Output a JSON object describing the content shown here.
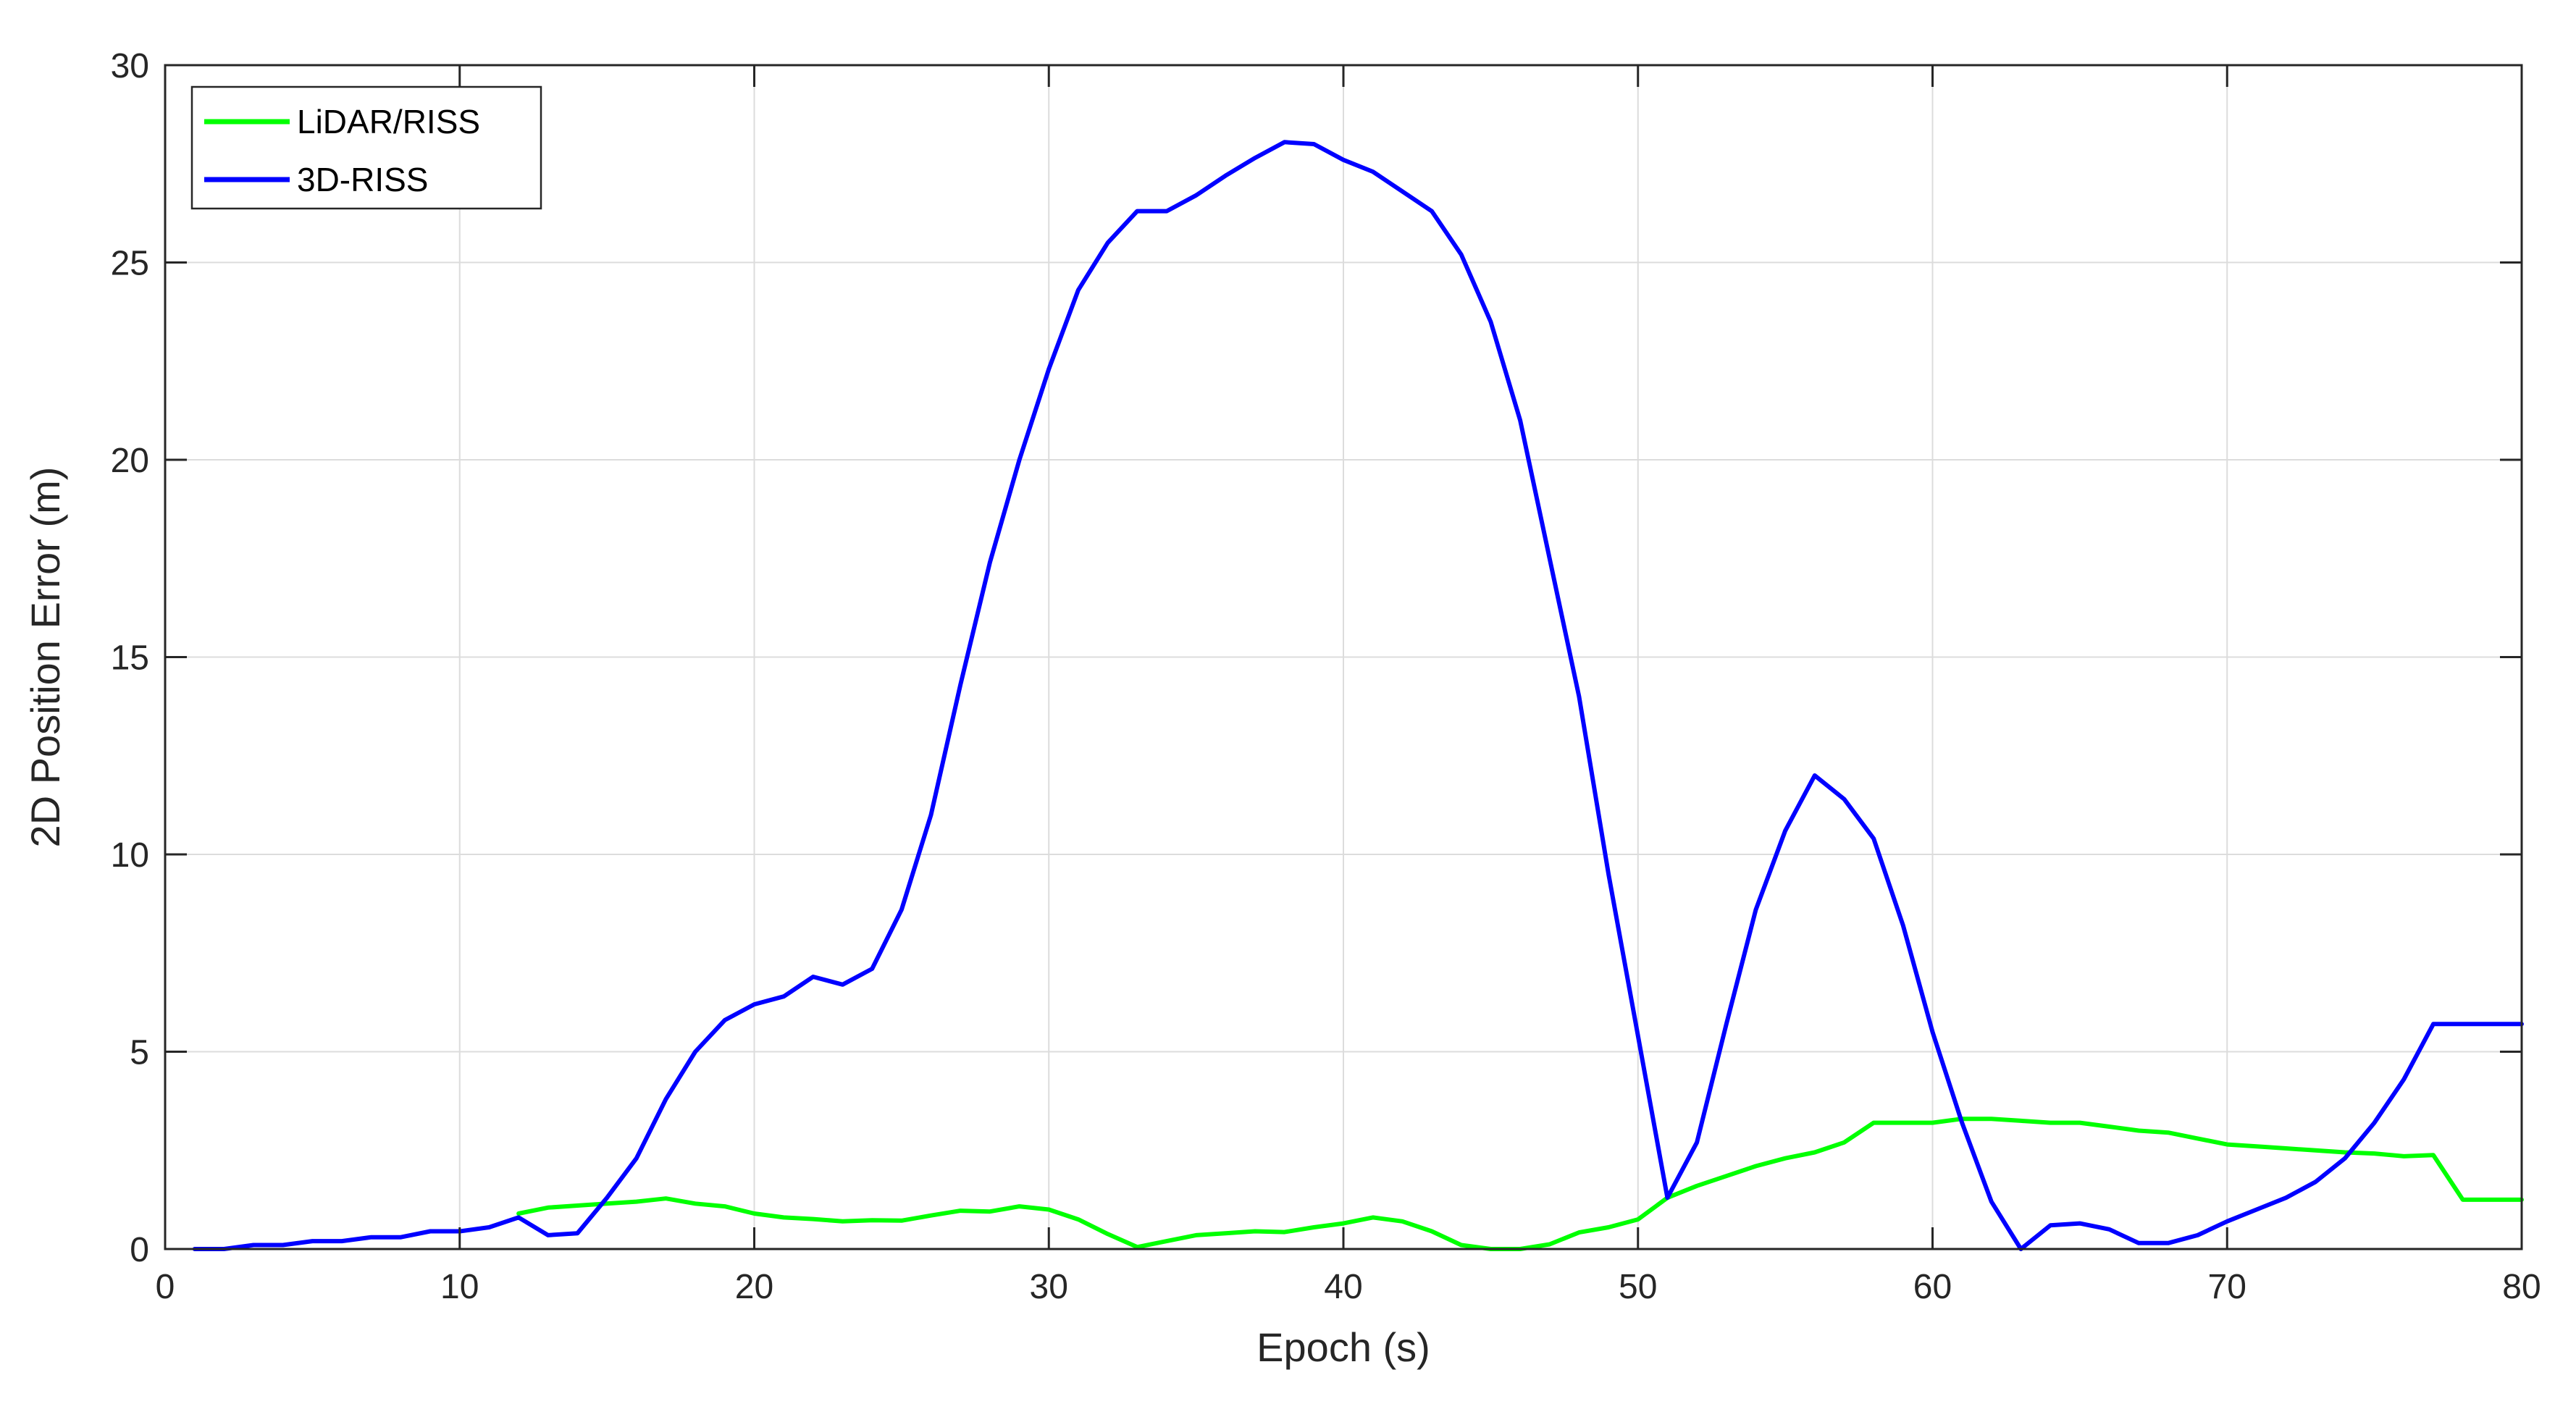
{
  "chart_data": {
    "type": "line",
    "xlabel": "Epoch (s)",
    "ylabel": "2D Position Error (m)",
    "xlim": [
      0,
      80
    ],
    "ylim": [
      0,
      30
    ],
    "xticks": [
      0,
      10,
      20,
      30,
      40,
      50,
      60,
      70,
      80
    ],
    "yticks": [
      0,
      5,
      10,
      15,
      20,
      25,
      30
    ],
    "grid": true,
    "legend_position": "top-left",
    "series": [
      {
        "name": "LiDAR/RISS",
        "color": "#00ff00",
        "x": [
          12,
          13,
          14,
          15,
          16,
          17,
          18,
          19,
          20,
          21,
          22,
          23,
          24,
          25,
          26,
          27,
          28,
          29,
          30,
          31,
          32,
          33,
          34,
          35,
          36,
          37,
          38,
          39,
          40,
          41,
          42,
          43,
          44,
          45,
          46,
          47,
          48,
          49,
          50,
          51,
          52,
          53,
          54,
          55,
          56,
          57,
          58,
          59,
          60,
          61,
          62,
          63,
          64,
          65,
          66,
          67,
          68,
          69,
          70,
          71,
          72,
          73,
          74,
          75,
          76,
          77,
          78,
          79,
          80
        ],
        "y": [
          0.9,
          1.05,
          1.1,
          1.15,
          1.2,
          1.28,
          1.15,
          1.08,
          0.9,
          0.8,
          0.76,
          0.7,
          0.73,
          0.72,
          0.85,
          0.97,
          0.95,
          1.08,
          1.0,
          0.75,
          0.38,
          0.05,
          0.2,
          0.35,
          0.4,
          0.45,
          0.43,
          0.55,
          0.65,
          0.8,
          0.7,
          0.45,
          0.1,
          0.0,
          0.0,
          0.12,
          0.42,
          0.55,
          0.75,
          1.3,
          1.6,
          1.85,
          2.1,
          2.3,
          2.45,
          2.7,
          3.2,
          3.2,
          3.2,
          3.3,
          3.3,
          3.25,
          3.2,
          3.2,
          3.1,
          3.0,
          2.95,
          2.8,
          2.65,
          2.6,
          2.55,
          2.5,
          2.45,
          2.42,
          2.35,
          2.38,
          1.25,
          1.25,
          1.25
        ]
      },
      {
        "name": "3D-RISS",
        "color": "#0000ff",
        "x": [
          1,
          2,
          3,
          4,
          5,
          6,
          7,
          8,
          9,
          10,
          11,
          12,
          13,
          14,
          15,
          16,
          17,
          18,
          19,
          20,
          21,
          22,
          23,
          24,
          25,
          26,
          27,
          28,
          29,
          30,
          31,
          32,
          33,
          34,
          35,
          36,
          37,
          38,
          39,
          40,
          41,
          42,
          43,
          44,
          45,
          46,
          47,
          48,
          49,
          50,
          51,
          52,
          53,
          54,
          55,
          56,
          57,
          58,
          59,
          60,
          61,
          62,
          63,
          64,
          65,
          66,
          67,
          68,
          69,
          70,
          71,
          72,
          73,
          74,
          75,
          76,
          77,
          78,
          79,
          80
        ],
        "y": [
          0,
          0,
          0.1,
          0.1,
          0.2,
          0.2,
          0.3,
          0.3,
          0.45,
          0.45,
          0.55,
          0.8,
          0.35,
          0.4,
          1.3,
          2.3,
          3.8,
          5.0,
          5.8,
          6.2,
          6.4,
          6.9,
          6.7,
          7.1,
          8.6,
          11.0,
          14.3,
          17.4,
          20.0,
          22.3,
          24.3,
          25.5,
          26.3,
          26.3,
          26.7,
          27.2,
          27.65,
          28.05,
          28.0,
          27.6,
          27.3,
          26.8,
          26.3,
          25.2,
          23.5,
          21.0,
          17.5,
          14.0,
          9.5,
          5.4,
          1.3,
          2.7,
          5.7,
          8.6,
          10.6,
          12.0,
          11.4,
          10.4,
          8.2,
          5.5,
          3.2,
          1.2,
          0.0,
          0.6,
          0.65,
          0.5,
          0.15,
          0.15,
          0.35,
          0.7,
          1.0,
          1.3,
          1.7,
          2.3,
          3.2,
          4.3,
          5.7,
          5.7,
          5.7,
          5.7
        ]
      }
    ]
  }
}
